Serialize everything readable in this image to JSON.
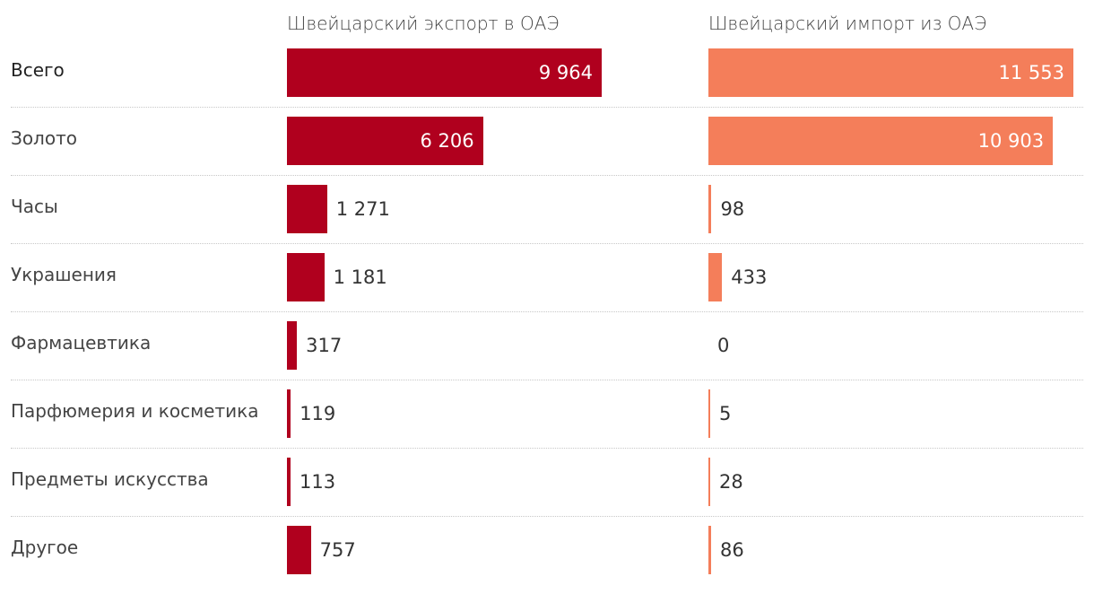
{
  "chart_data": {
    "type": "bar",
    "categories": [
      "Всего",
      "Золото",
      "Часы",
      "Украшения",
      "Фармацевтика",
      "Парфюмерия и косметика",
      "Предметы искусства",
      "Другое"
    ],
    "series": [
      {
        "name": "Швейцарский экспорт в ОАЭ",
        "values": [
          9964,
          6206,
          1271,
          1181,
          317,
          119,
          113,
          757
        ],
        "labels": [
          "9 964",
          "6 206",
          "1 271",
          "1 181",
          "317",
          "119",
          "113",
          "757"
        ],
        "color": "#b0001e"
      },
      {
        "name": "Швейцарский импорт из ОАЭ",
        "values": [
          11553,
          10903,
          98,
          433,
          0,
          5,
          28,
          86
        ],
        "labels": [
          "11 553",
          "10 903",
          "98",
          "433",
          "0",
          "5",
          "28",
          "86"
        ],
        "color": "#f47e5a"
      }
    ],
    "grid": false,
    "legend": "top"
  }
}
